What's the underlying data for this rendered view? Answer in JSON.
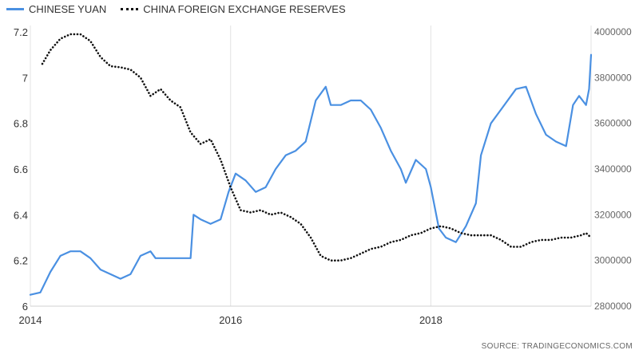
{
  "legend": {
    "yuan": "CHINESE YUAN",
    "reserves": "CHINA FOREIGN EXCHANGE RESERVES"
  },
  "source": "SOURCE:   TRADINGECONOMICS.COM",
  "chart_data": {
    "type": "line",
    "x_ticks": [
      "2014",
      "2016",
      "2018"
    ],
    "x_tick_values": [
      2014,
      2016,
      2018
    ],
    "xlim": [
      2014.0,
      2019.6
    ],
    "y_left": {
      "ticks": [
        "6",
        "6.2",
        "6.4",
        "6.6",
        "6.8",
        "7",
        "7.2"
      ],
      "lim": [
        6.0,
        7.2
      ]
    },
    "y_right": {
      "ticks": [
        "2800000",
        "3000000",
        "3200000",
        "3400000",
        "3600000",
        "3800000",
        "4000000"
      ],
      "lim": [
        2800000,
        4000000
      ]
    },
    "grid": {
      "vertical": true,
      "horizontal": false
    },
    "series": [
      {
        "name": "CHINESE YUAN",
        "axis": "left",
        "color": "#4a90e2",
        "style": "solid",
        "points": [
          [
            2014.0,
            6.05
          ],
          [
            2014.1,
            6.06
          ],
          [
            2014.2,
            6.15
          ],
          [
            2014.3,
            6.22
          ],
          [
            2014.4,
            6.24
          ],
          [
            2014.5,
            6.24
          ],
          [
            2014.6,
            6.21
          ],
          [
            2014.7,
            6.16
          ],
          [
            2014.8,
            6.14
          ],
          [
            2014.9,
            6.12
          ],
          [
            2015.0,
            6.14
          ],
          [
            2015.1,
            6.22
          ],
          [
            2015.2,
            6.24
          ],
          [
            2015.25,
            6.21
          ],
          [
            2015.4,
            6.21
          ],
          [
            2015.6,
            6.21
          ],
          [
            2015.63,
            6.4
          ],
          [
            2015.7,
            6.38
          ],
          [
            2015.8,
            6.36
          ],
          [
            2015.9,
            6.38
          ],
          [
            2015.98,
            6.5
          ],
          [
            2016.05,
            6.58
          ],
          [
            2016.15,
            6.55
          ],
          [
            2016.25,
            6.5
          ],
          [
            2016.35,
            6.52
          ],
          [
            2016.45,
            6.6
          ],
          [
            2016.55,
            6.66
          ],
          [
            2016.65,
            6.68
          ],
          [
            2016.75,
            6.72
          ],
          [
            2016.85,
            6.9
          ],
          [
            2016.95,
            6.96
          ],
          [
            2017.0,
            6.88
          ],
          [
            2017.1,
            6.88
          ],
          [
            2017.2,
            6.9
          ],
          [
            2017.3,
            6.9
          ],
          [
            2017.4,
            6.86
          ],
          [
            2017.5,
            6.78
          ],
          [
            2017.6,
            6.68
          ],
          [
            2017.7,
            6.6
          ],
          [
            2017.75,
            6.54
          ],
          [
            2017.85,
            6.64
          ],
          [
            2017.95,
            6.6
          ],
          [
            2018.0,
            6.52
          ],
          [
            2018.08,
            6.34
          ],
          [
            2018.15,
            6.3
          ],
          [
            2018.25,
            6.28
          ],
          [
            2018.35,
            6.35
          ],
          [
            2018.45,
            6.45
          ],
          [
            2018.5,
            6.66
          ],
          [
            2018.6,
            6.8
          ],
          [
            2018.7,
            6.86
          ],
          [
            2018.8,
            6.92
          ],
          [
            2018.85,
            6.95
          ],
          [
            2018.95,
            6.96
          ],
          [
            2019.05,
            6.84
          ],
          [
            2019.15,
            6.75
          ],
          [
            2019.25,
            6.72
          ],
          [
            2019.35,
            6.7
          ],
          [
            2019.42,
            6.88
          ],
          [
            2019.48,
            6.92
          ],
          [
            2019.55,
            6.88
          ],
          [
            2019.58,
            6.95
          ],
          [
            2019.6,
            7.1
          ]
        ]
      },
      {
        "name": "CHINA FOREIGN EXCHANGE RESERVES",
        "axis": "right",
        "color": "#111111",
        "style": "dotted",
        "points": [
          [
            2014.12,
            3860000
          ],
          [
            2014.2,
            3920000
          ],
          [
            2014.3,
            3970000
          ],
          [
            2014.4,
            3990000
          ],
          [
            2014.5,
            3990000
          ],
          [
            2014.6,
            3960000
          ],
          [
            2014.7,
            3890000
          ],
          [
            2014.8,
            3850000
          ],
          [
            2014.9,
            3845000
          ],
          [
            2015.0,
            3835000
          ],
          [
            2015.1,
            3800000
          ],
          [
            2015.2,
            3720000
          ],
          [
            2015.3,
            3750000
          ],
          [
            2015.4,
            3700000
          ],
          [
            2015.5,
            3670000
          ],
          [
            2015.6,
            3560000
          ],
          [
            2015.7,
            3510000
          ],
          [
            2015.8,
            3530000
          ],
          [
            2015.9,
            3440000
          ],
          [
            2016.0,
            3320000
          ],
          [
            2016.1,
            3220000
          ],
          [
            2016.2,
            3210000
          ],
          [
            2016.3,
            3220000
          ],
          [
            2016.4,
            3200000
          ],
          [
            2016.5,
            3210000
          ],
          [
            2016.6,
            3190000
          ],
          [
            2016.7,
            3160000
          ],
          [
            2016.8,
            3100000
          ],
          [
            2016.9,
            3020000
          ],
          [
            2017.0,
            3000000
          ],
          [
            2017.1,
            3000000
          ],
          [
            2017.2,
            3010000
          ],
          [
            2017.3,
            3030000
          ],
          [
            2017.4,
            3050000
          ],
          [
            2017.5,
            3060000
          ],
          [
            2017.6,
            3080000
          ],
          [
            2017.7,
            3090000
          ],
          [
            2017.8,
            3110000
          ],
          [
            2017.9,
            3120000
          ],
          [
            2018.0,
            3140000
          ],
          [
            2018.1,
            3150000
          ],
          [
            2018.2,
            3140000
          ],
          [
            2018.3,
            3120000
          ],
          [
            2018.4,
            3110000
          ],
          [
            2018.5,
            3110000
          ],
          [
            2018.6,
            3110000
          ],
          [
            2018.7,
            3090000
          ],
          [
            2018.8,
            3060000
          ],
          [
            2018.9,
            3060000
          ],
          [
            2019.0,
            3080000
          ],
          [
            2019.1,
            3090000
          ],
          [
            2019.2,
            3090000
          ],
          [
            2019.3,
            3100000
          ],
          [
            2019.4,
            3100000
          ],
          [
            2019.5,
            3110000
          ],
          [
            2019.55,
            3120000
          ],
          [
            2019.6,
            3100000
          ]
        ]
      }
    ]
  }
}
